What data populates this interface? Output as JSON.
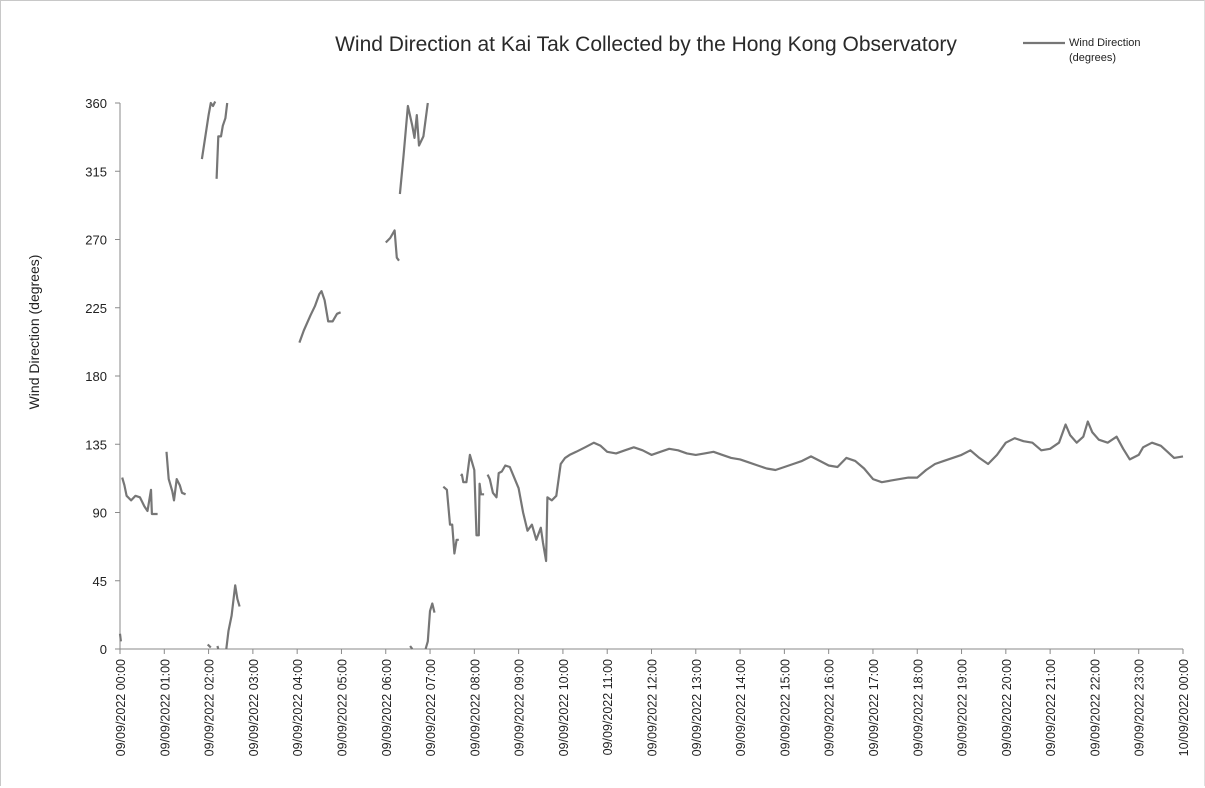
{
  "chart_data": {
    "type": "line",
    "title": "Wind Direction at Kai Tak Collected by the Hong Kong Observatory",
    "ylabel": "Wind Direction (degrees)",
    "xlabel": "",
    "ylim": [
      0,
      360
    ],
    "yticks": [
      0,
      45,
      90,
      135,
      180,
      225,
      270,
      315,
      360
    ],
    "x_tick_labels": [
      "09/09/2022 00:00",
      "09/09/2022 01:00",
      "09/09/2022 02:00",
      "09/09/2022 03:00",
      "09/09/2022 04:00",
      "09/09/2022 05:00",
      "09/09/2022 06:00",
      "09/09/2022 07:00",
      "09/09/2022 08:00",
      "09/09/2022 09:00",
      "09/09/2022 10:00",
      "09/09/2022 11:00",
      "09/09/2022 12:00",
      "09/09/2022 13:00",
      "09/09/2022 14:00",
      "09/09/2022 15:00",
      "09/09/2022 16:00",
      "09/09/2022 17:00",
      "09/09/2022 18:00",
      "09/09/2022 19:00",
      "09/09/2022 20:00",
      "09/09/2022 21:00",
      "09/09/2022 22:00",
      "09/09/2022 23:00",
      "10/09/2022 00:00"
    ],
    "grid": false,
    "legend": {
      "position": "top-right",
      "label_lines": [
        "Wind Direction",
        "(degrees)"
      ]
    },
    "series": [
      {
        "name": "Wind Direction (degrees)",
        "color": "#767676",
        "segments": [
          [
            [
              0.0,
              10
            ],
            [
              0.02,
              5
            ]
          ],
          [
            [
              0.05,
              113
            ],
            [
              0.1,
              108
            ],
            [
              0.15,
              101
            ],
            [
              0.25,
              98
            ],
            [
              0.35,
              101
            ],
            [
              0.45,
              100
            ],
            [
              0.55,
              94
            ],
            [
              0.62,
              91
            ],
            [
              0.7,
              105
            ],
            [
              0.72,
              89
            ],
            [
              0.85,
              89
            ]
          ],
          [
            [
              1.05,
              130
            ],
            [
              1.1,
              112
            ],
            [
              1.18,
              104
            ],
            [
              1.22,
              98
            ],
            [
              1.28,
              112
            ],
            [
              1.35,
              108
            ],
            [
              1.4,
              103
            ],
            [
              1.48,
              102
            ]
          ],
          [
            [
              1.85,
              323
            ],
            [
              1.9,
              333
            ],
            [
              2.0,
              352
            ],
            [
              2.05,
              360
            ],
            [
              2.1,
              358
            ],
            [
              2.15,
              361
            ]
          ],
          [
            [
              1.98,
              3
            ],
            [
              2.05,
              1
            ]
          ],
          [
            [
              2.18,
              310
            ],
            [
              2.22,
              338
            ],
            [
              2.28,
              338
            ],
            [
              2.32,
              345
            ],
            [
              2.38,
              350
            ],
            [
              2.42,
              360
            ]
          ],
          [
            [
              2.2,
              2
            ],
            [
              2.22,
              0
            ]
          ],
          [
            [
              2.4,
              0
            ],
            [
              2.45,
              12
            ],
            [
              2.52,
              22
            ],
            [
              2.6,
              42
            ],
            [
              2.65,
              33
            ],
            [
              2.7,
              28
            ]
          ],
          [
            [
              4.05,
              202
            ],
            [
              4.15,
              210
            ],
            [
              4.3,
              220
            ],
            [
              4.4,
              226
            ],
            [
              4.5,
              234
            ],
            [
              4.55,
              236
            ],
            [
              4.62,
              230
            ],
            [
              4.7,
              216
            ],
            [
              4.8,
              216
            ],
            [
              4.9,
              221
            ],
            [
              4.98,
              222
            ]
          ],
          [
            [
              6.0,
              268
            ],
            [
              6.1,
              271
            ],
            [
              6.2,
              276
            ],
            [
              6.25,
              258
            ],
            [
              6.3,
              256
            ]
          ],
          [
            [
              6.32,
              300
            ],
            [
              6.4,
              325
            ],
            [
              6.5,
              358
            ],
            [
              6.6,
              345
            ],
            [
              6.65,
              337
            ],
            [
              6.7,
              352
            ],
            [
              6.75,
              332
            ],
            [
              6.85,
              338
            ],
            [
              6.95,
              360
            ]
          ],
          [
            [
              6.55,
              2
            ],
            [
              6.6,
              0
            ]
          ],
          [
            [
              6.9,
              0
            ],
            [
              6.95,
              5
            ],
            [
              7.0,
              25
            ],
            [
              7.05,
              30
            ],
            [
              7.1,
              24
            ]
          ],
          [
            [
              7.3,
              107
            ],
            [
              7.38,
              105
            ],
            [
              7.45,
              82
            ],
            [
              7.5,
              82
            ],
            [
              7.55,
              63
            ],
            [
              7.6,
              72
            ],
            [
              7.65,
              72
            ]
          ],
          [
            [
              7.7,
              114
            ],
            [
              7.72,
              115
            ],
            [
              7.75,
              110
            ],
            [
              7.82,
              110
            ],
            [
              7.9,
              128
            ],
            [
              7.95,
              123
            ],
            [
              8.0,
              118
            ],
            [
              8.05,
              75
            ],
            [
              8.1,
              75
            ],
            [
              8.12,
              109
            ],
            [
              8.15,
              102
            ],
            [
              8.22,
              102
            ]
          ],
          [
            [
              8.3,
              115
            ],
            [
              8.35,
              112
            ],
            [
              8.42,
              103
            ],
            [
              8.5,
              100
            ],
            [
              8.55,
              116
            ],
            [
              8.62,
              117
            ],
            [
              8.7,
              121
            ],
            [
              8.8,
              120
            ],
            [
              8.9,
              113
            ],
            [
              9.0,
              106
            ],
            [
              9.1,
              90
            ],
            [
              9.2,
              78
            ],
            [
              9.3,
              82
            ],
            [
              9.4,
              72
            ],
            [
              9.5,
              80
            ],
            [
              9.55,
              70
            ],
            [
              9.62,
              58
            ],
            [
              9.65,
              100
            ],
            [
              9.75,
              98
            ],
            [
              9.85,
              101
            ],
            [
              9.95,
              122
            ],
            [
              10.05,
              126
            ],
            [
              10.15,
              128
            ],
            [
              10.3,
              130
            ],
            [
              10.5,
              133
            ],
            [
              10.7,
              136
            ],
            [
              10.85,
              134
            ],
            [
              11.0,
              130
            ],
            [
              11.2,
              129
            ],
            [
              11.4,
              131
            ],
            [
              11.6,
              133
            ],
            [
              11.8,
              131
            ],
            [
              12.0,
              128
            ],
            [
              12.2,
              130
            ],
            [
              12.4,
              132
            ],
            [
              12.6,
              131
            ],
            [
              12.8,
              129
            ],
            [
              13.0,
              128
            ],
            [
              13.2,
              129
            ],
            [
              13.4,
              130
            ],
            [
              13.6,
              128
            ],
            [
              13.8,
              126
            ],
            [
              14.0,
              125
            ],
            [
              14.2,
              123
            ],
            [
              14.4,
              121
            ],
            [
              14.6,
              119
            ],
            [
              14.8,
              118
            ],
            [
              15.0,
              120
            ],
            [
              15.2,
              122
            ],
            [
              15.4,
              124
            ],
            [
              15.6,
              127
            ],
            [
              15.8,
              124
            ],
            [
              16.0,
              121
            ],
            [
              16.2,
              120
            ],
            [
              16.4,
              126
            ],
            [
              16.6,
              124
            ],
            [
              16.8,
              119
            ],
            [
              17.0,
              112
            ],
            [
              17.2,
              110
            ],
            [
              17.4,
              111
            ],
            [
              17.6,
              112
            ],
            [
              17.8,
              113
            ],
            [
              18.0,
              113
            ],
            [
              18.2,
              118
            ],
            [
              18.4,
              122
            ],
            [
              18.6,
              124
            ],
            [
              18.8,
              126
            ],
            [
              19.0,
              128
            ],
            [
              19.2,
              131
            ],
            [
              19.4,
              126
            ],
            [
              19.6,
              122
            ],
            [
              19.8,
              128
            ],
            [
              20.0,
              136
            ],
            [
              20.2,
              139
            ],
            [
              20.4,
              137
            ],
            [
              20.6,
              136
            ],
            [
              20.8,
              131
            ],
            [
              21.0,
              132
            ],
            [
              21.2,
              136
            ],
            [
              21.35,
              148
            ],
            [
              21.45,
              141
            ],
            [
              21.6,
              136
            ],
            [
              21.75,
              140
            ],
            [
              21.85,
              150
            ],
            [
              21.95,
              143
            ],
            [
              22.1,
              138
            ],
            [
              22.3,
              136
            ],
            [
              22.5,
              140
            ],
            [
              22.65,
              132
            ],
            [
              22.8,
              125
            ],
            [
              23.0,
              128
            ],
            [
              23.1,
              133
            ],
            [
              23.3,
              136
            ],
            [
              23.5,
              134
            ],
            [
              23.65,
              130
            ],
            [
              23.8,
              126
            ],
            [
              24.0,
              127
            ]
          ]
        ]
      }
    ]
  }
}
